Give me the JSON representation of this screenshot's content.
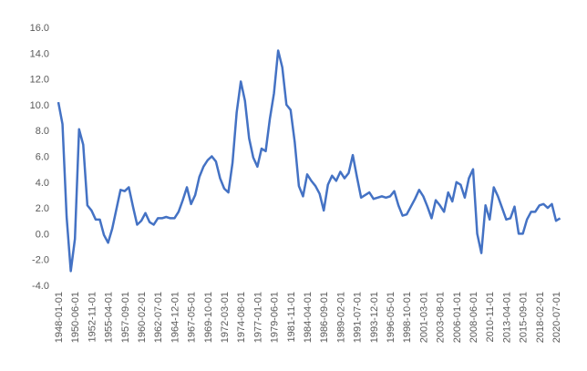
{
  "chart_data": {
    "type": "line",
    "color": "#4472c4",
    "grid": false,
    "categories": [
      "1948-01-01",
      null,
      null,
      null,
      "1950-06-01",
      null,
      null,
      null,
      "1952-11-01",
      null,
      null,
      null,
      "1955-04-01",
      null,
      null,
      null,
      "1957-09-01",
      null,
      null,
      null,
      "1960-02-01",
      null,
      null,
      null,
      "1962-07-01",
      null,
      null,
      null,
      "1964-12-01",
      null,
      null,
      null,
      "1967-05-01",
      null,
      null,
      null,
      "1969-10-01",
      null,
      null,
      null,
      "1972-03-01",
      null,
      null,
      null,
      "1974-08-01",
      null,
      null,
      null,
      "1977-01-01",
      null,
      null,
      null,
      "1979-06-01",
      null,
      null,
      null,
      "1981-11-01",
      null,
      null,
      null,
      "1984-04-01",
      null,
      null,
      null,
      "1986-09-01",
      null,
      null,
      null,
      "1989-02-01",
      null,
      null,
      null,
      "1991-07-01",
      null,
      null,
      null,
      "1993-12-01",
      null,
      null,
      null,
      "1996-05-01",
      null,
      null,
      null,
      "1998-10-01",
      null,
      null,
      null,
      "2001-03-01",
      null,
      null,
      null,
      "2003-08-01",
      null,
      null,
      null,
      "2006-01-01",
      null,
      null,
      null,
      "2008-06-01",
      null,
      null,
      null,
      "2010-11-01",
      null,
      null,
      null,
      "2013-04-01",
      null,
      null,
      null,
      "2015-09-01",
      null,
      null,
      null,
      "2018-02-01",
      null,
      null,
      null,
      "2020-07-01",
      null
    ],
    "values": [
      10.2,
      8.5,
      1.3,
      -2.9,
      -0.4,
      8.1,
      6.9,
      2.2,
      1.8,
      1.1,
      1.1,
      -0.1,
      -0.7,
      0.4,
      1.9,
      3.4,
      3.3,
      3.6,
      2.1,
      0.7,
      1.0,
      1.6,
      0.9,
      0.7,
      1.2,
      1.2,
      1.3,
      1.2,
      1.2,
      1.7,
      2.6,
      3.6,
      2.3,
      3.0,
      4.4,
      5.2,
      5.7,
      6.0,
      5.6,
      4.3,
      3.5,
      3.2,
      5.5,
      9.4,
      11.8,
      10.3,
      7.4,
      5.9,
      5.2,
      6.6,
      6.4,
      8.9,
      10.9,
      14.2,
      12.9,
      10.0,
      9.6,
      7.1,
      3.7,
      2.9,
      4.6,
      4.1,
      3.7,
      3.1,
      1.8,
      3.8,
      4.5,
      4.1,
      4.8,
      4.3,
      4.7,
      6.1,
      4.4,
      2.8,
      3.0,
      3.2,
      2.7,
      2.8,
      2.9,
      2.8,
      2.9,
      3.3,
      2.2,
      1.4,
      1.5,
      2.1,
      2.7,
      3.4,
      2.9,
      2.1,
      1.2,
      2.6,
      2.2,
      1.7,
      3.2,
      2.5,
      4.0,
      3.8,
      2.8,
      4.3,
      5.0,
      0.0,
      -1.5,
      2.2,
      1.1,
      3.6,
      2.9,
      2.0,
      1.1,
      1.2,
      2.1,
      0.0,
      0.0,
      1.1,
      1.7,
      1.7,
      2.2,
      2.3,
      2.0,
      2.3,
      1.0,
      1.2
    ],
    "ylim": [
      -4,
      16
    ],
    "yticks": [
      {
        "value": -4,
        "label": "-4.0"
      },
      {
        "value": -2,
        "label": "-2.0"
      },
      {
        "value": 0,
        "label": "0.0"
      },
      {
        "value": 2,
        "label": "2.0"
      },
      {
        "value": 4,
        "label": "4.0"
      },
      {
        "value": 6,
        "label": "6.0"
      },
      {
        "value": 8,
        "label": "8.0"
      },
      {
        "value": 10,
        "label": "10.0"
      },
      {
        "value": 12,
        "label": "12.0"
      },
      {
        "value": 14,
        "label": "14.0"
      },
      {
        "value": 16,
        "label": "16.0"
      }
    ]
  }
}
